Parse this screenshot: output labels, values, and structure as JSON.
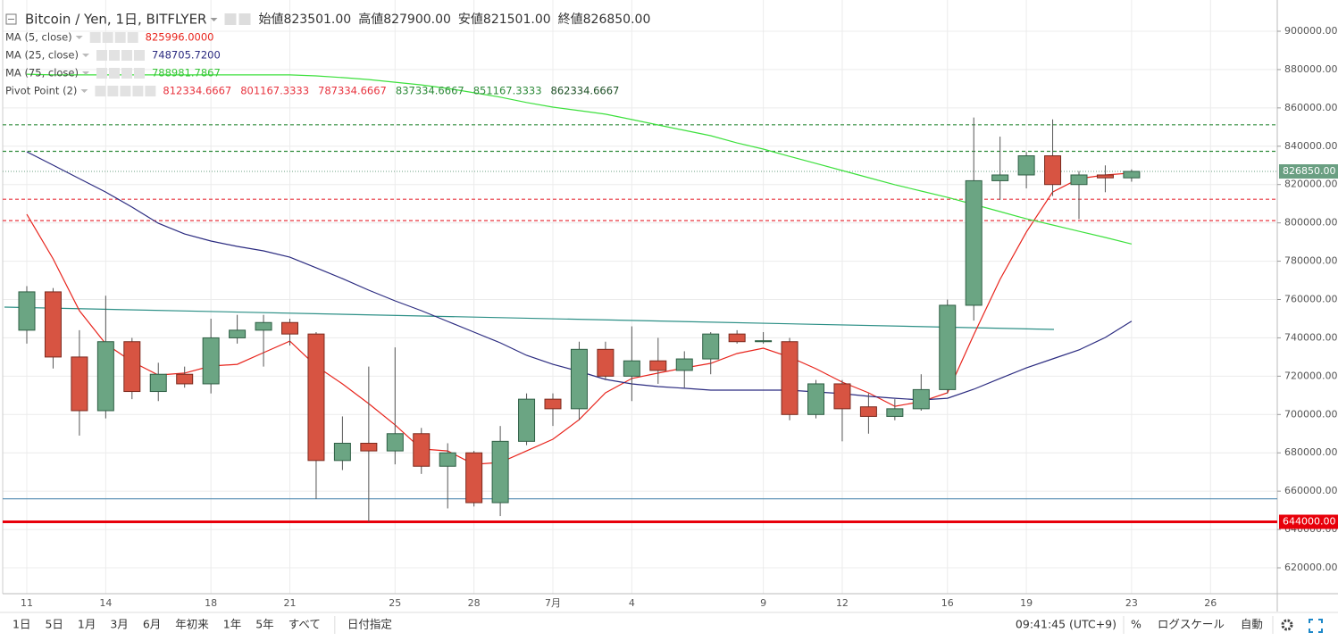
{
  "header": {
    "title": "Bitcoin / Yen, 1日, BITFLYER",
    "quote": [
      {
        "label": "始値",
        "value": "823501.00"
      },
      {
        "label": "高値",
        "value": "827900.00"
      },
      {
        "label": "安値",
        "value": "821501.00"
      },
      {
        "label": "終値",
        "value": "826850.00"
      }
    ]
  },
  "chart_data": {
    "type": "candlestick",
    "categories": [
      "11",
      null,
      null,
      "14",
      null,
      null,
      null,
      "18",
      null,
      null,
      "21",
      null,
      null,
      null,
      "25",
      null,
      null,
      "28",
      null,
      null,
      "7月",
      null,
      null,
      "4",
      null,
      null,
      null,
      null,
      "9",
      null,
      null,
      "12",
      null,
      null,
      null,
      "16",
      null,
      null,
      "19",
      null,
      null,
      null,
      "23",
      null,
      null,
      "26"
    ],
    "open": [
      744000,
      764000,
      730000,
      702000,
      738000,
      712000,
      721000,
      716000,
      740000,
      744000,
      748000,
      742000,
      676000,
      685000,
      681000,
      690000,
      673000,
      680000,
      654000,
      686000,
      708000,
      703000,
      734000,
      720000,
      728000,
      723000,
      729000,
      742000,
      738000,
      738000,
      700000,
      716000,
      704000,
      699000,
      703000,
      713000,
      757000,
      822000,
      825000,
      835000,
      820000,
      825000,
      823501,
      null,
      null,
      null
    ],
    "high": [
      767000,
      766000,
      744000,
      762000,
      740000,
      727000,
      725000,
      750000,
      752000,
      752000,
      750000,
      743000,
      699000,
      725000,
      735000,
      693000,
      685000,
      681000,
      694000,
      711000,
      711000,
      738000,
      738000,
      746000,
      740000,
      733000,
      743000,
      744000,
      743000,
      740000,
      718000,
      718000,
      711000,
      708000,
      721000,
      760000,
      855000,
      845000,
      837000,
      854000,
      827000,
      830000,
      827900,
      null,
      null,
      null
    ],
    "low": [
      737000,
      724000,
      689000,
      698000,
      708000,
      707000,
      714000,
      711000,
      737000,
      725000,
      736000,
      656000,
      671000,
      644000,
      674000,
      669000,
      651000,
      652000,
      647000,
      684000,
      694000,
      697000,
      718000,
      707000,
      716000,
      714000,
      721000,
      737000,
      737000,
      697000,
      698000,
      686000,
      690000,
      697000,
      702000,
      711000,
      749000,
      812000,
      818000,
      814000,
      802000,
      816000,
      821501,
      null,
      null,
      null
    ],
    "close": [
      764000,
      730000,
      702000,
      738000,
      712000,
      721000,
      716000,
      740000,
      744000,
      748000,
      742000,
      676000,
      685000,
      681000,
      690000,
      673000,
      680000,
      654000,
      686000,
      708000,
      703000,
      734000,
      720000,
      728000,
      723000,
      729000,
      742000,
      738000,
      738500,
      700000,
      716000,
      703000,
      699000,
      703000,
      713000,
      757000,
      822000,
      825000,
      835000,
      820000,
      825000,
      823500,
      826850,
      null,
      null,
      null
    ],
    "up_color": "#6ba583",
    "down_color": "#d75442",
    "series": [
      {
        "name": "MA (5, close)",
        "color": "#e8241c",
        "legend_value": "825996.0000",
        "values": [
          804500,
          781200,
          754200,
          736900,
          727600,
          720600,
          721600,
          725300,
          726200,
          732300,
          738300,
          725300,
          716000,
          705700,
          694600,
          682000,
          681000,
          674000,
          675000,
          681000,
          687100,
          697300,
          711300,
          718800,
          721600,
          724300,
          726700,
          731800,
          734600,
          730000,
          723900,
          716900,
          711300,
          704300,
          706700,
          711300,
          741600,
          770500,
          795200,
          816100,
          823100,
          825000,
          825996,
          null,
          null,
          null
        ]
      },
      {
        "name": "MA (25, close)",
        "color": "#2b2b80",
        "legend_value": "748705.7200",
        "values": [
          837100,
          830100,
          823100,
          816100,
          808200,
          799800,
          794200,
          790500,
          787700,
          785400,
          782100,
          776600,
          770900,
          764900,
          759300,
          754200,
          748600,
          743000,
          737400,
          730900,
          726200,
          722500,
          718300,
          716000,
          714600,
          713700,
          712700,
          712700,
          712700,
          712700,
          711800,
          710900,
          709500,
          708500,
          707600,
          708500,
          713200,
          718800,
          724300,
          729000,
          733700,
          740200,
          748705.72,
          null,
          null,
          null
        ]
      },
      {
        "name": "MA (75, close)",
        "color": "#3de03d",
        "legend_value": "788981.7867",
        "values": [
          877600,
          877200,
          877200,
          877200,
          877200,
          877200,
          877200,
          877200,
          877200,
          877200,
          877200,
          876700,
          875800,
          874800,
          873400,
          872000,
          870200,
          867900,
          865600,
          862800,
          860400,
          858600,
          856700,
          853900,
          851100,
          848300,
          845500,
          841700,
          838500,
          834700,
          831000,
          827300,
          823600,
          819900,
          816600,
          813300,
          809600,
          805900,
          802100,
          798900,
          795600,
          792400,
          788981.7867,
          null,
          null,
          null
        ]
      }
    ],
    "pivot": {
      "name": "Pivot Point (2)",
      "levels": [
        {
          "value": 812334.6667,
          "label": "812334.6667",
          "color": "#e8343f",
          "dashed": true
        },
        {
          "value": 801167.3333,
          "label": "801167.3333",
          "color": "#e8343f",
          "dashed": true
        },
        {
          "value": 787334.6667,
          "label": "787334.6667",
          "color": "#e8343f",
          "dashed": false
        },
        {
          "value": 837334.6667,
          "label": "837334.6667",
          "color": "#2e8b3a",
          "dashed": true
        },
        {
          "value": 851167.3333,
          "label": "851167.3333",
          "color": "#2e8b3a",
          "dashed": true
        },
        {
          "value": 862334.6667,
          "label": "862334.6667",
          "color": "#1d4f25",
          "dashed": false
        }
      ]
    },
    "price_lines": [
      {
        "value": 644000,
        "label": "644000.00",
        "color": "#e8000a"
      },
      {
        "value": 656000,
        "color": "#3f7fa8"
      }
    ],
    "last_price": {
      "value": 826850,
      "label": "826850.00",
      "color": "#6a9f82"
    },
    "ylim": [
      606500,
      916300
    ],
    "yticks": [
      {
        "value": 620000,
        "label": "620000.00"
      },
      {
        "value": 640000,
        "label": "640000.00"
      },
      {
        "value": 660000,
        "label": "660000.00"
      },
      {
        "value": 680000,
        "label": "680000.00"
      },
      {
        "value": 700000,
        "label": "700000.00"
      },
      {
        "value": 720000,
        "label": "720000.00"
      },
      {
        "value": 740000,
        "label": "740000.00"
      },
      {
        "value": 760000,
        "label": "760000.00"
      },
      {
        "value": 780000,
        "label": "780000.00"
      },
      {
        "value": 800000,
        "label": "800000.00"
      },
      {
        "value": 820000,
        "label": "820000.00"
      },
      {
        "value": 840000,
        "label": "840000.00"
      },
      {
        "value": 860000,
        "label": "860000.00"
      },
      {
        "value": 880000,
        "label": "880000.00"
      },
      {
        "value": 900000,
        "label": "900000.00"
      }
    ],
    "grid": true
  },
  "toolbar": {
    "ranges": [
      "1日",
      "5日",
      "1月",
      "3月",
      "6月",
      "年初来",
      "1年",
      "5年",
      "すべて"
    ],
    "date_range": "日付指定",
    "time": "09:41:45 (UTC+9)",
    "options": [
      "%",
      "ログスケール",
      "自動"
    ]
  }
}
